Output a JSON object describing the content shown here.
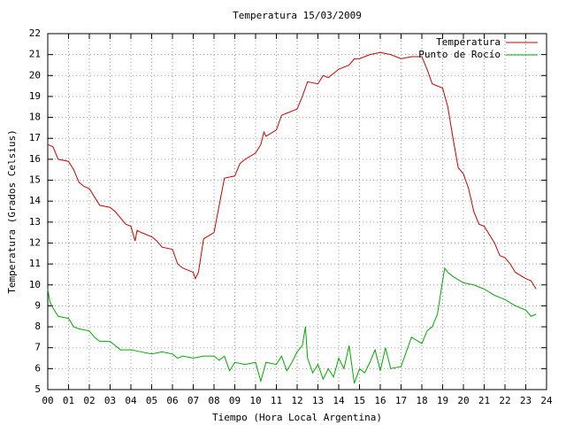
{
  "chart_data": {
    "type": "line",
    "title": "Temperatura 15/03/2009",
    "xlabel": "Tiempo (Hora Local Argentina)",
    "ylabel": "Temperatura (Grados Celsius)",
    "xlim": [
      0,
      24
    ],
    "ylim": [
      5,
      22
    ],
    "xticks": [
      {
        "value": 0,
        "label": "00"
      },
      {
        "value": 1,
        "label": "01"
      },
      {
        "value": 2,
        "label": "02"
      },
      {
        "value": 3,
        "label": "03"
      },
      {
        "value": 4,
        "label": "04"
      },
      {
        "value": 5,
        "label": "05"
      },
      {
        "value": 6,
        "label": "06"
      },
      {
        "value": 7,
        "label": "07"
      },
      {
        "value": 8,
        "label": "08"
      },
      {
        "value": 9,
        "label": "09"
      },
      10,
      11,
      12,
      13,
      14,
      15,
      16,
      17,
      18,
      19,
      20,
      21,
      22,
      23,
      24
    ],
    "yticks": [
      5,
      6,
      7,
      8,
      9,
      10,
      11,
      12,
      13,
      14,
      15,
      16,
      17,
      18,
      19,
      20,
      21,
      22
    ],
    "grid": true,
    "legend": "top-right",
    "series": [
      {
        "name": "Temperatura",
        "color": "#cc0000",
        "x": [
          0,
          0.25,
          0.5,
          1,
          1.25,
          1.5,
          1.75,
          2,
          2.25,
          2.5,
          3,
          3.25,
          3.5,
          3.75,
          4,
          4.2,
          4.3,
          4.5,
          5,
          5.25,
          5.5,
          6,
          6.25,
          6.5,
          7,
          7.1,
          7.25,
          7.5,
          8,
          8.25,
          8.5,
          9,
          9.25,
          9.5,
          10,
          10.25,
          10.4,
          10.5,
          11,
          11.25,
          11.5,
          12,
          12.25,
          12.5,
          13,
          13.25,
          13.5,
          14,
          14.5,
          14.75,
          15,
          15.5,
          16,
          16.5,
          17,
          17.5,
          18,
          18.25,
          18.5,
          19,
          19.25,
          19.5,
          19.75,
          20,
          20.25,
          20.5,
          20.75,
          21,
          21.25,
          21.5,
          21.75,
          22,
          22.25,
          22.5,
          23,
          23.25,
          23.5
        ],
        "values": [
          16.7,
          16.6,
          16.0,
          15.9,
          15.5,
          14.9,
          14.7,
          14.6,
          14.2,
          13.8,
          13.7,
          13.5,
          13.2,
          12.9,
          12.8,
          12.1,
          12.6,
          12.5,
          12.3,
          12.1,
          11.8,
          11.7,
          11.0,
          10.8,
          10.6,
          10.3,
          10.6,
          12.2,
          12.5,
          13.8,
          15.1,
          15.2,
          15.8,
          16.0,
          16.3,
          16.7,
          17.3,
          17.1,
          17.4,
          18.1,
          18.2,
          18.4,
          19.0,
          19.7,
          19.6,
          20.0,
          19.9,
          20.3,
          20.5,
          20.8,
          20.8,
          21.0,
          21.1,
          21.0,
          20.8,
          20.9,
          20.9,
          20.3,
          19.6,
          19.4,
          18.5,
          17.0,
          15.6,
          15.3,
          14.6,
          13.5,
          12.9,
          12.8,
          12.4,
          12.0,
          11.4,
          11.3,
          11.0,
          10.6,
          10.3,
          10.2,
          9.8
        ]
      },
      {
        "name": "Punto de Rocío",
        "color": "#00aa00",
        "x": [
          0,
          0.1,
          0.25,
          0.5,
          1,
          1.25,
          1.5,
          2,
          2.25,
          2.5,
          3,
          3.25,
          3.5,
          4,
          4.5,
          5,
          5.5,
          6,
          6.25,
          6.5,
          7,
          7.5,
          8,
          8.25,
          8.5,
          8.75,
          9,
          9.5,
          10,
          10.25,
          10.5,
          11,
          11.25,
          11.5,
          11.75,
          12,
          12.25,
          12.4,
          12.5,
          12.75,
          13,
          13.25,
          13.5,
          13.75,
          14,
          14.25,
          14.5,
          14.75,
          15,
          15.25,
          15.5,
          15.75,
          16,
          16.25,
          16.5,
          17,
          17.25,
          17.5,
          18,
          18.25,
          18.5,
          18.75,
          19,
          19.1,
          19.25,
          19.5,
          20,
          20.5,
          21,
          21.5,
          22,
          22.5,
          23,
          23.25,
          23.5
        ],
        "values": [
          9.8,
          9.2,
          8.9,
          8.5,
          8.4,
          8.0,
          7.9,
          7.8,
          7.5,
          7.3,
          7.3,
          7.1,
          6.9,
          6.9,
          6.8,
          6.7,
          6.8,
          6.7,
          6.5,
          6.6,
          6.5,
          6.6,
          6.6,
          6.4,
          6.6,
          5.9,
          6.3,
          6.2,
          6.3,
          5.4,
          6.3,
          6.2,
          6.6,
          5.9,
          6.3,
          6.8,
          7.1,
          8.0,
          6.5,
          5.8,
          6.2,
          5.5,
          6.0,
          5.6,
          6.5,
          6.0,
          7.1,
          5.3,
          6.0,
          5.8,
          6.3,
          6.9,
          5.9,
          7.0,
          6.0,
          6.1,
          6.8,
          7.5,
          7.2,
          7.8,
          8.0,
          8.6,
          10.2,
          10.8,
          10.6,
          10.4,
          10.1,
          10.0,
          9.8,
          9.5,
          9.3,
          9.0,
          8.8,
          8.5,
          8.6
        ]
      }
    ]
  }
}
